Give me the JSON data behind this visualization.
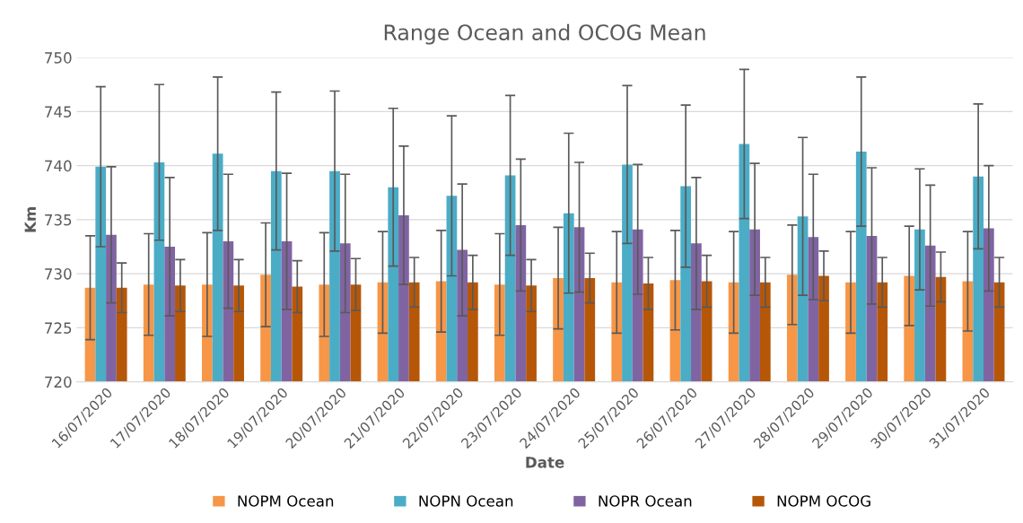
{
  "chart_data": {
    "type": "bar",
    "title": "Range Ocean and OCOG Mean",
    "xlabel": "Date",
    "ylabel": "Km",
    "categories": [
      "16/07/2020",
      "17/07/2020",
      "18/07/2020",
      "19/07/2020",
      "20/07/2020",
      "21/07/2020",
      "22/07/2020",
      "23/07/2020",
      "24/07/2020",
      "25/07/2020",
      "26/07/2020",
      "27/07/2020",
      "28/07/2020",
      "29/07/2020",
      "30/07/2020",
      "31/07/2020"
    ],
    "series": [
      {
        "name": "NOPM Ocean",
        "color": "#f79646",
        "values": [
          728.7,
          729.0,
          729.0,
          729.9,
          729.0,
          729.2,
          729.3,
          729.0,
          729.6,
          729.2,
          729.4,
          729.2,
          729.9,
          729.2,
          729.8,
          729.3
        ],
        "errors": [
          4.8,
          4.7,
          4.8,
          4.8,
          4.8,
          4.7,
          4.7,
          4.7,
          4.7,
          4.7,
          4.6,
          4.7,
          4.6,
          4.7,
          4.6,
          4.6
        ]
      },
      {
        "name": "NOPN Ocean",
        "color": "#4bacc6",
        "values": [
          739.9,
          740.3,
          741.1,
          739.5,
          739.5,
          738.0,
          737.2,
          739.1,
          735.6,
          740.1,
          738.1,
          742.0,
          735.3,
          741.3,
          734.1,
          739.0
        ],
        "errors": [
          7.4,
          7.2,
          7.1,
          7.3,
          7.4,
          7.3,
          7.4,
          7.4,
          7.4,
          7.3,
          7.5,
          6.9,
          7.3,
          6.9,
          5.6,
          6.7
        ]
      },
      {
        "name": "NOPR Ocean",
        "color": "#8064a2",
        "values": [
          733.6,
          732.5,
          733.0,
          733.0,
          732.8,
          735.4,
          732.2,
          734.5,
          734.3,
          734.1,
          732.8,
          734.1,
          733.4,
          733.5,
          732.6,
          734.2
        ],
        "errors": [
          6.3,
          6.4,
          6.2,
          6.3,
          6.4,
          6.4,
          6.1,
          6.1,
          6.0,
          6.0,
          6.1,
          6.1,
          5.8,
          6.3,
          5.6,
          5.8
        ]
      },
      {
        "name": "NOPM OCOG",
        "color": "#b65708",
        "values": [
          728.7,
          728.9,
          728.9,
          728.8,
          729.0,
          729.2,
          729.2,
          728.9,
          729.6,
          729.1,
          729.3,
          729.2,
          729.8,
          729.2,
          729.7,
          729.2
        ],
        "errors": [
          2.3,
          2.4,
          2.4,
          2.4,
          2.4,
          2.3,
          2.5,
          2.4,
          2.3,
          2.4,
          2.4,
          2.3,
          2.3,
          2.3,
          2.3,
          2.3
        ]
      }
    ],
    "ylim": [
      720,
      750
    ],
    "yticks": [
      720,
      725,
      730,
      735,
      740,
      745,
      750
    ],
    "grid": "y",
    "legend": "bottom"
  }
}
